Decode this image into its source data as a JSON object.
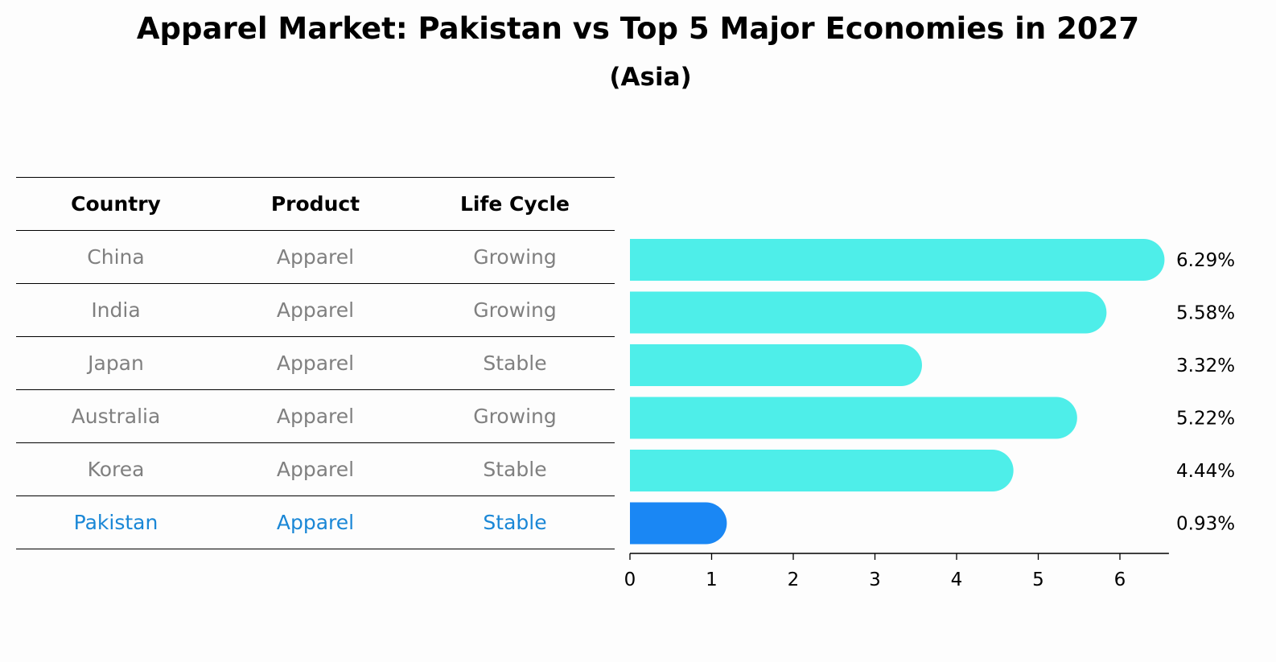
{
  "title": "Apparel Market: Pakistan vs Top 5 Major Economies in 2027",
  "subtitle": "(Asia)",
  "table": {
    "headers": [
      "Country",
      "Product",
      "Life Cycle"
    ],
    "rows": [
      {
        "country": "China",
        "product": "Apparel",
        "life_cycle": "Growing"
      },
      {
        "country": "India",
        "product": "Apparel",
        "life_cycle": "Growing"
      },
      {
        "country": "Japan",
        "product": "Apparel",
        "life_cycle": "Stable"
      },
      {
        "country": "Australia",
        "product": "Apparel",
        "life_cycle": "Growing"
      },
      {
        "country": "Korea",
        "product": "Apparel",
        "life_cycle": "Stable"
      },
      {
        "country": "Pakistan",
        "product": "Apparel",
        "life_cycle": "Stable"
      }
    ],
    "highlight_color": "#1a87d6",
    "text_color": "#808080"
  },
  "chart_data": {
    "type": "bar",
    "orientation": "horizontal",
    "categories": [
      "China",
      "India",
      "Japan",
      "Australia",
      "Korea",
      "Pakistan"
    ],
    "values": [
      6.29,
      5.58,
      3.32,
      5.22,
      4.44,
      0.93
    ],
    "value_labels": [
      "6.29%",
      "5.58%",
      "3.32%",
      "5.22%",
      "4.44%",
      "0.93%"
    ],
    "xlim": [
      0,
      6.6
    ],
    "xticks": [
      "0",
      "1",
      "2",
      "3",
      "4",
      "5",
      "6"
    ],
    "bar_color": "#4eeee9",
    "highlight_color": "#1a87f4",
    "highlight_category": "Pakistan",
    "grid": false
  }
}
